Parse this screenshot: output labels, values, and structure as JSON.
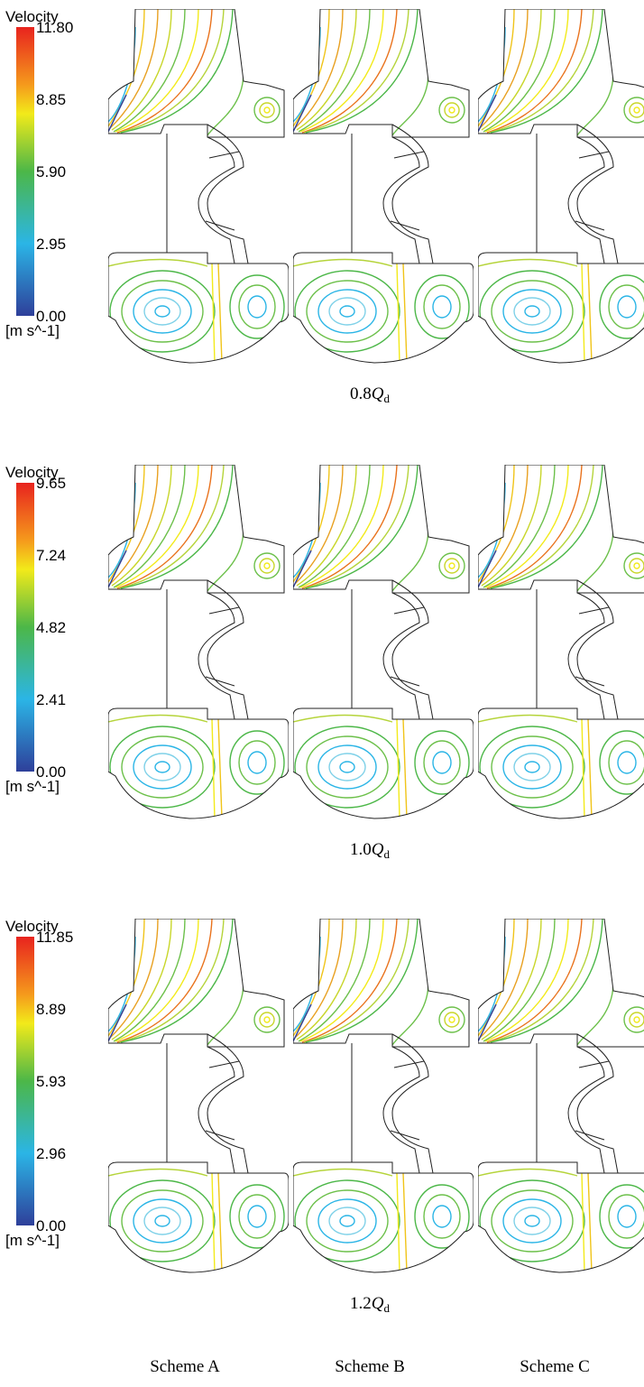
{
  "panels": [
    {
      "legend": {
        "title": "Velocity",
        "ticks": [
          "11.80",
          "8.85",
          "5.90",
          "2.95",
          "0.00"
        ],
        "unit": "[m s^-1]"
      },
      "caption": {
        "prefix": "0.8",
        "symbol": "Q",
        "subscript": "d"
      }
    },
    {
      "legend": {
        "title": "Velocity",
        "ticks": [
          "9.65",
          "7.24",
          "4.82",
          "2.41",
          "0.00"
        ],
        "unit": "[m s^-1]"
      },
      "caption": {
        "prefix": "1.0",
        "symbol": "Q",
        "subscript": "d"
      }
    },
    {
      "legend": {
        "title": "Velocity",
        "ticks": [
          "11.85",
          "8.89",
          "5.93",
          "2.96",
          "0.00"
        ],
        "unit": "[m s^-1]"
      },
      "caption": {
        "prefix": "1.2",
        "symbol": "Q",
        "subscript": "d"
      }
    }
  ],
  "columns": [
    "Scheme A",
    "Scheme B",
    "Scheme C"
  ]
}
